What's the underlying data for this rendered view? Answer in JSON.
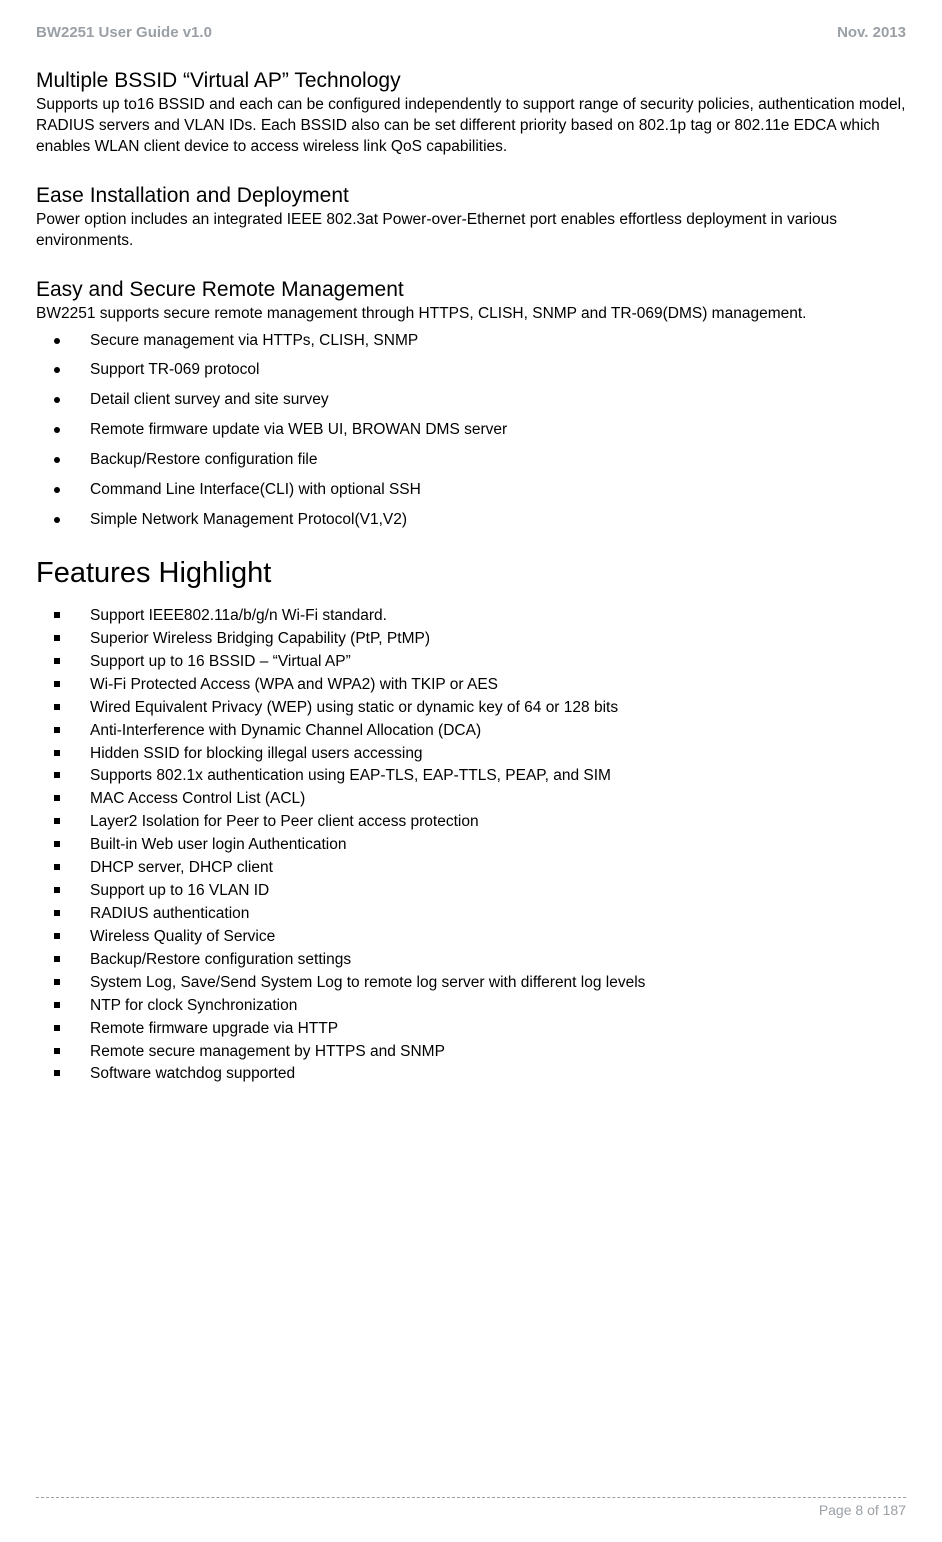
{
  "header": {
    "left": "BW2251 User Guide v1.0",
    "right": "Nov.  2013"
  },
  "sections": [
    {
      "title": "Multiple BSSID “Virtual AP” Technology",
      "body": "Supports up to16 BSSID and each can be configured independently to support range of security policies, authentication model, RADIUS servers and VLAN IDs.  Each BSSID also can be set different priority based on 802.1p tag or 802.11e EDCA which enables WLAN client device to access wireless link QoS capabilities."
    },
    {
      "title": "Ease Installation and Deployment",
      "body": "Power option includes an integrated IEEE 802.3at Power-over-Ethernet port enables effortless deployment in various environments."
    },
    {
      "title": "Easy and Secure Remote Management",
      "body": "BW2251 supports secure remote management through HTTPS, CLISH, SNMP and TR-069(DMS) management.",
      "bullets": [
        "Secure management via HTTPs, CLISH, SNMP",
        "Support TR-069 protocol",
        "Detail client survey and site survey",
        "Remote firmware update via WEB UI, BROWAN DMS server",
        "Backup/Restore configuration file",
        "Command Line Interface(CLI) with optional SSH",
        "Simple Network Management Protocol(V1,V2)"
      ]
    }
  ],
  "features": {
    "heading": "Features Highlight",
    "items": [
      "Support IEEE802.11a/b/g/n Wi-Fi standard.",
      "Superior Wireless Bridging Capability (PtP, PtMP)",
      "Support up to 16 BSSID – “Virtual AP”",
      "Wi-Fi Protected Access (WPA and WPA2) with TKIP or AES",
      "Wired Equivalent Privacy (WEP) using static or dynamic key of 64 or 128 bits",
      "Anti-Interference with Dynamic Channel Allocation (DCA)",
      "Hidden SSID for blocking illegal users accessing",
      "Supports 802.1x authentication using EAP-TLS, EAP-TTLS, PEAP, and SIM",
      "MAC Access Control List (ACL)",
      "Layer2 Isolation for Peer to Peer client access protection",
      "Built-in Web user login Authentication",
      "DHCP server, DHCP client",
      "Support up to 16 VLAN ID",
      "RADIUS authentication",
      "Wireless Quality of Service",
      "Backup/Restore configuration settings",
      "System Log, Save/Send System Log to remote log server with different log levels",
      "NTP for clock Synchronization",
      "Remote firmware upgrade via HTTP",
      "Remote secure management by HTTPS and SNMP",
      "Software watchdog supported"
    ]
  },
  "footer": {
    "page": "Page 8 of 187"
  },
  "style": {
    "muted_color": "#9aa0a6",
    "text_color": "#000000",
    "body_fontsize": 15.5,
    "title_fontsize": 21,
    "heading_fontsize": 29
  }
}
